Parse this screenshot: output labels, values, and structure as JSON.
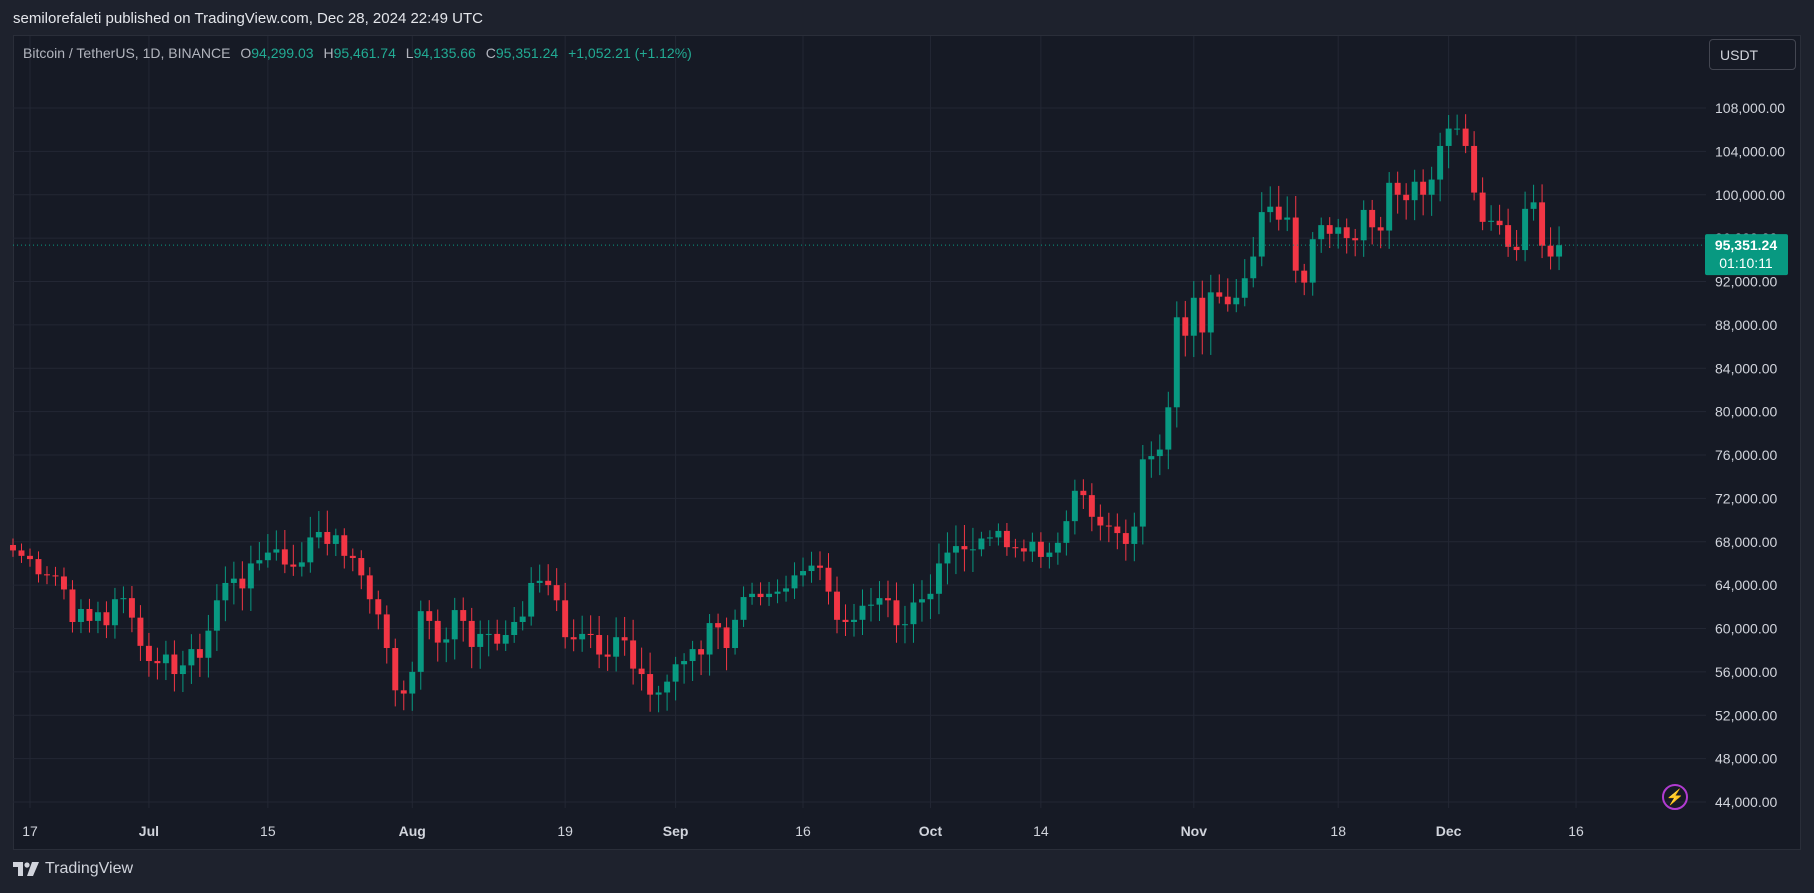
{
  "header": {
    "published": "semilorefaleti published on TradingView.com, Dec 28, 2024 22:49 UTC"
  },
  "legend": {
    "symbol": "Bitcoin / TetherUS, 1D, BINANCE",
    "o_label": "O",
    "o_value": "94,299.03",
    "h_label": "H",
    "h_value": "95,461.74",
    "l_label": "L",
    "l_value": "94,135.66",
    "c_label": "C",
    "c_value": "95,351.24",
    "change": "+1,052.21 (+1.12%)"
  },
  "currency": "USDT",
  "price_tag": {
    "price": "95,351.24",
    "countdown": "01:10:11",
    "color": "#089981"
  },
  "footer": {
    "brand": "TradingView"
  },
  "icons": {
    "alert": "lightning-icon",
    "logo": "tradingview-logo-icon"
  },
  "colors": {
    "up": "#089981",
    "down": "#f23645",
    "background": "#161a25",
    "grid": "#232734",
    "accent_alert": "#b13bd1"
  },
  "chart_data": {
    "type": "candlestick",
    "symbol": "BTCUSDT",
    "interval": "1D",
    "ylim": [
      42000,
      112000
    ],
    "y_ticks": [
      44000,
      48000,
      52000,
      56000,
      60000,
      64000,
      68000,
      72000,
      76000,
      80000,
      84000,
      88000,
      92000,
      96000,
      100000,
      104000,
      108000
    ],
    "y_tick_labels": [
      "44,000.00",
      "48,000.00",
      "52,000.00",
      "56,000.00",
      "60,000.00",
      "64,000.00",
      "68,000.00",
      "72,000.00",
      "76,000.00",
      "80,000.00",
      "84,000.00",
      "88,000.00",
      "92,000.00",
      "96,000.00",
      "100,000.00",
      "104,000.00",
      "108,000.00"
    ],
    "x_start": "2024-06-15",
    "x_end": "2024-12-28",
    "x_ticks": [
      {
        "date": "2024-06-17",
        "label": "17"
      },
      {
        "date": "2024-07-01",
        "label": "Jul"
      },
      {
        "date": "2024-07-15",
        "label": "15"
      },
      {
        "date": "2024-08-01",
        "label": "Aug"
      },
      {
        "date": "2024-08-19",
        "label": "19"
      },
      {
        "date": "2024-09-01",
        "label": "Sep"
      },
      {
        "date": "2024-09-16",
        "label": "16"
      },
      {
        "date": "2024-10-01",
        "label": "Oct"
      },
      {
        "date": "2024-10-14",
        "label": "14"
      },
      {
        "date": "2024-11-01",
        "label": "Nov"
      },
      {
        "date": "2024-11-18",
        "label": "18"
      },
      {
        "date": "2024-12-01",
        "label": "Dec"
      },
      {
        "date": "2024-12-16",
        "label": "16"
      }
    ],
    "last_price": 95351.24,
    "close_series": [
      67200,
      66700,
      66400,
      65000,
      64900,
      64800,
      63600,
      60600,
      61800,
      60700,
      61500,
      60300,
      62700,
      62800,
      61000,
      58400,
      57000,
      56800,
      57600,
      55800,
      56600,
      58100,
      57300,
      59800,
      62600,
      64200,
      64600,
      63700,
      66000,
      66300,
      67000,
      67300,
      65900,
      65700,
      66100,
      68400,
      68900,
      67800,
      68600,
      66700,
      66500,
      64900,
      62700,
      61300,
      58200,
      54300,
      54000,
      56000,
      61600,
      60700,
      58700,
      59000,
      61700,
      60700,
      58300,
      59500,
      59500,
      58600,
      59400,
      60600,
      61100,
      64200,
      64400,
      64000,
      62600,
      59200,
      59000,
      59500,
      59400,
      57600,
      57400,
      59200,
      58900,
      56300,
      55800,
      53900,
      54100,
      55100,
      56700,
      57000,
      58100,
      57600,
      60500,
      60100,
      58200,
      60800,
      62900,
      63200,
      62900,
      63200,
      63400,
      63700,
      64900,
      65300,
      65800,
      65600,
      63400,
      60800,
      60600,
      60800,
      62100,
      62200,
      62800,
      62600,
      60300,
      60400,
      62400,
      62700,
      63200,
      66000,
      67000,
      67600,
      67300,
      67300,
      68300,
      68400,
      69000,
      67500,
      67400,
      67100,
      68000,
      66600,
      67000,
      67900,
      69900,
      72700,
      72300,
      70300,
      69500,
      69400,
      68800,
      67800,
      69400,
      75600,
      75900,
      76500,
      80400,
      88700,
      87000,
      90500,
      87300,
      91000,
      90600,
      89900,
      90500,
      92300,
      94300,
      98400,
      98900,
      97700,
      97900,
      93000,
      91900,
      95900,
      97200,
      96400,
      97000,
      96000,
      95800,
      98600,
      97000,
      96700,
      101100,
      100000,
      99500,
      101200,
      100000,
      101400,
      104500,
      106100,
      106100,
      104500,
      100200,
      97500,
      97600,
      97200,
      95200,
      94900,
      98700,
      99300,
      95300,
      94300,
      95350
    ]
  }
}
